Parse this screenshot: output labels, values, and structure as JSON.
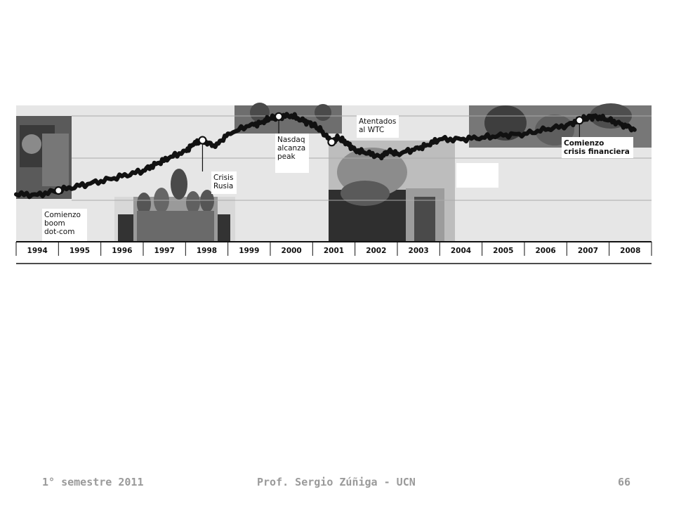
{
  "chart_data": {
    "type": "line",
    "x": [
      "1994",
      "1994.5",
      "1995",
      "1995.5",
      "1996",
      "1996.5",
      "1997",
      "1997.3",
      "1997.6",
      "1998",
      "1998.2",
      "1998.4",
      "1998.7",
      "1999",
      "1999.5",
      "1999.8",
      "2000",
      "2000.2",
      "2000.5",
      "2000.8",
      "2001",
      "2001.2",
      "2001.45",
      "2001.6",
      "2001.8",
      "2002",
      "2002.3",
      "2002.6",
      "2002.8",
      "2003",
      "2003.4",
      "2003.7",
      "2004",
      "2004.5",
      "2005",
      "2005.5",
      "2006",
      "2006.5",
      "2007",
      "2007.3",
      "2007.5",
      "2007.7",
      "2008",
      "2008.3",
      "2008.6"
    ],
    "series": [
      {
        "values": [
          10,
          9.5,
          14,
          19,
          24,
          29,
          35,
          42,
          48,
          56,
          63,
          67,
          60,
          74,
          82,
          86,
          90,
          92,
          93,
          87,
          84,
          77,
          65,
          70,
          64,
          57,
          53,
          50,
          55,
          53,
          57,
          62,
          68,
          68,
          70,
          72,
          74,
          78,
          83,
          88,
          91,
          92,
          88,
          84,
          78
        ]
      }
    ],
    "xlabels": [
      "1994",
      "1995",
      "1996",
      "1997",
      "1998",
      "1999",
      "2000",
      "2001",
      "2002",
      "2003",
      "2004",
      "2005",
      "2006",
      "2007",
      "2008"
    ],
    "ylim": [
      0,
      100
    ],
    "grid": true,
    "annotations": [
      {
        "lines": [
          "Comienzo",
          "boom",
          "dot-com"
        ],
        "x": "1995",
        "bold": false
      },
      {
        "lines": [
          "Crisis",
          "Rusia"
        ],
        "x": "1998.4",
        "bold": false
      },
      {
        "lines": [
          "Nasdaq",
          "alcanza",
          "peak"
        ],
        "x": "2000.2",
        "bold": false
      },
      {
        "lines": [
          "Atentados",
          "al WTC"
        ],
        "x": "2001.45",
        "bold": false
      },
      {
        "lines": [
          "Comienzo",
          "crisis financiera"
        ],
        "x": "2007.3",
        "bold": true
      }
    ]
  },
  "colors": {
    "panel": "#e6e6e6",
    "line": "#111111",
    "grid": "#aaaaaa",
    "footer": "#9a9a9a"
  },
  "footer": {
    "left": "1° semestre 2011",
    "center": "Prof. Sergio Zúñiga - UCN",
    "page": "66"
  }
}
